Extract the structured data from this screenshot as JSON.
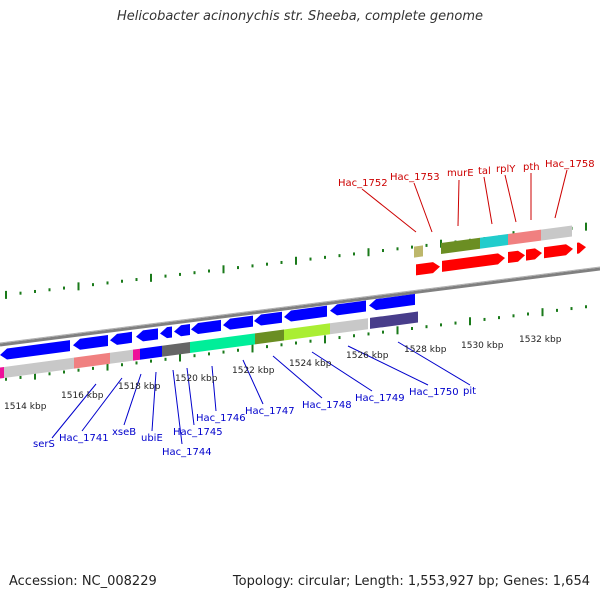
{
  "title": "Helicobacter acinonychis str. Sheeba, complete genome",
  "footer": {
    "accession": "Accession: NC_008229",
    "stats": "Topology: circular; Length: 1,553,927 bp; Genes: 1,654"
  },
  "colors": {
    "forward_gene": "#ff0000",
    "reverse_gene": "#0000ff",
    "forward_label": "#cc0000",
    "reverse_label": "#0000cc",
    "backbone": "#808080",
    "tick": "#1a7a1a",
    "olive": "#6b8e23",
    "cyan": "#22cccc",
    "salmon": "#f08080",
    "grey": "#c8c8c8",
    "magenta": "#ee1199",
    "spring": "#00ee99",
    "dark_grey": "#666666",
    "lime": "#aaee33",
    "slate": "#483d8b",
    "khaki": "#bdb76b"
  },
  "ticks": [
    "1514 kbp",
    "1516 kbp",
    "1518 kbp",
    "1520 kbp",
    "1522 kbp",
    "1524 kbp",
    "1526 kbp",
    "1528 kbp",
    "1530 kbp",
    "1532 kbp"
  ],
  "forward_labels": [
    "Hac_1752",
    "Hac_1753",
    "murE",
    "tal",
    "rplY",
    "pth",
    "Hac_1758"
  ],
  "reverse_labels": [
    "serS",
    "Hac_1741",
    "xseB",
    "ubiE",
    "Hac_1744",
    "Hac_1745",
    "Hac_1746",
    "Hac_1747",
    "Hac_1748",
    "Hac_1749",
    "Hac_1750",
    "pit"
  ]
}
